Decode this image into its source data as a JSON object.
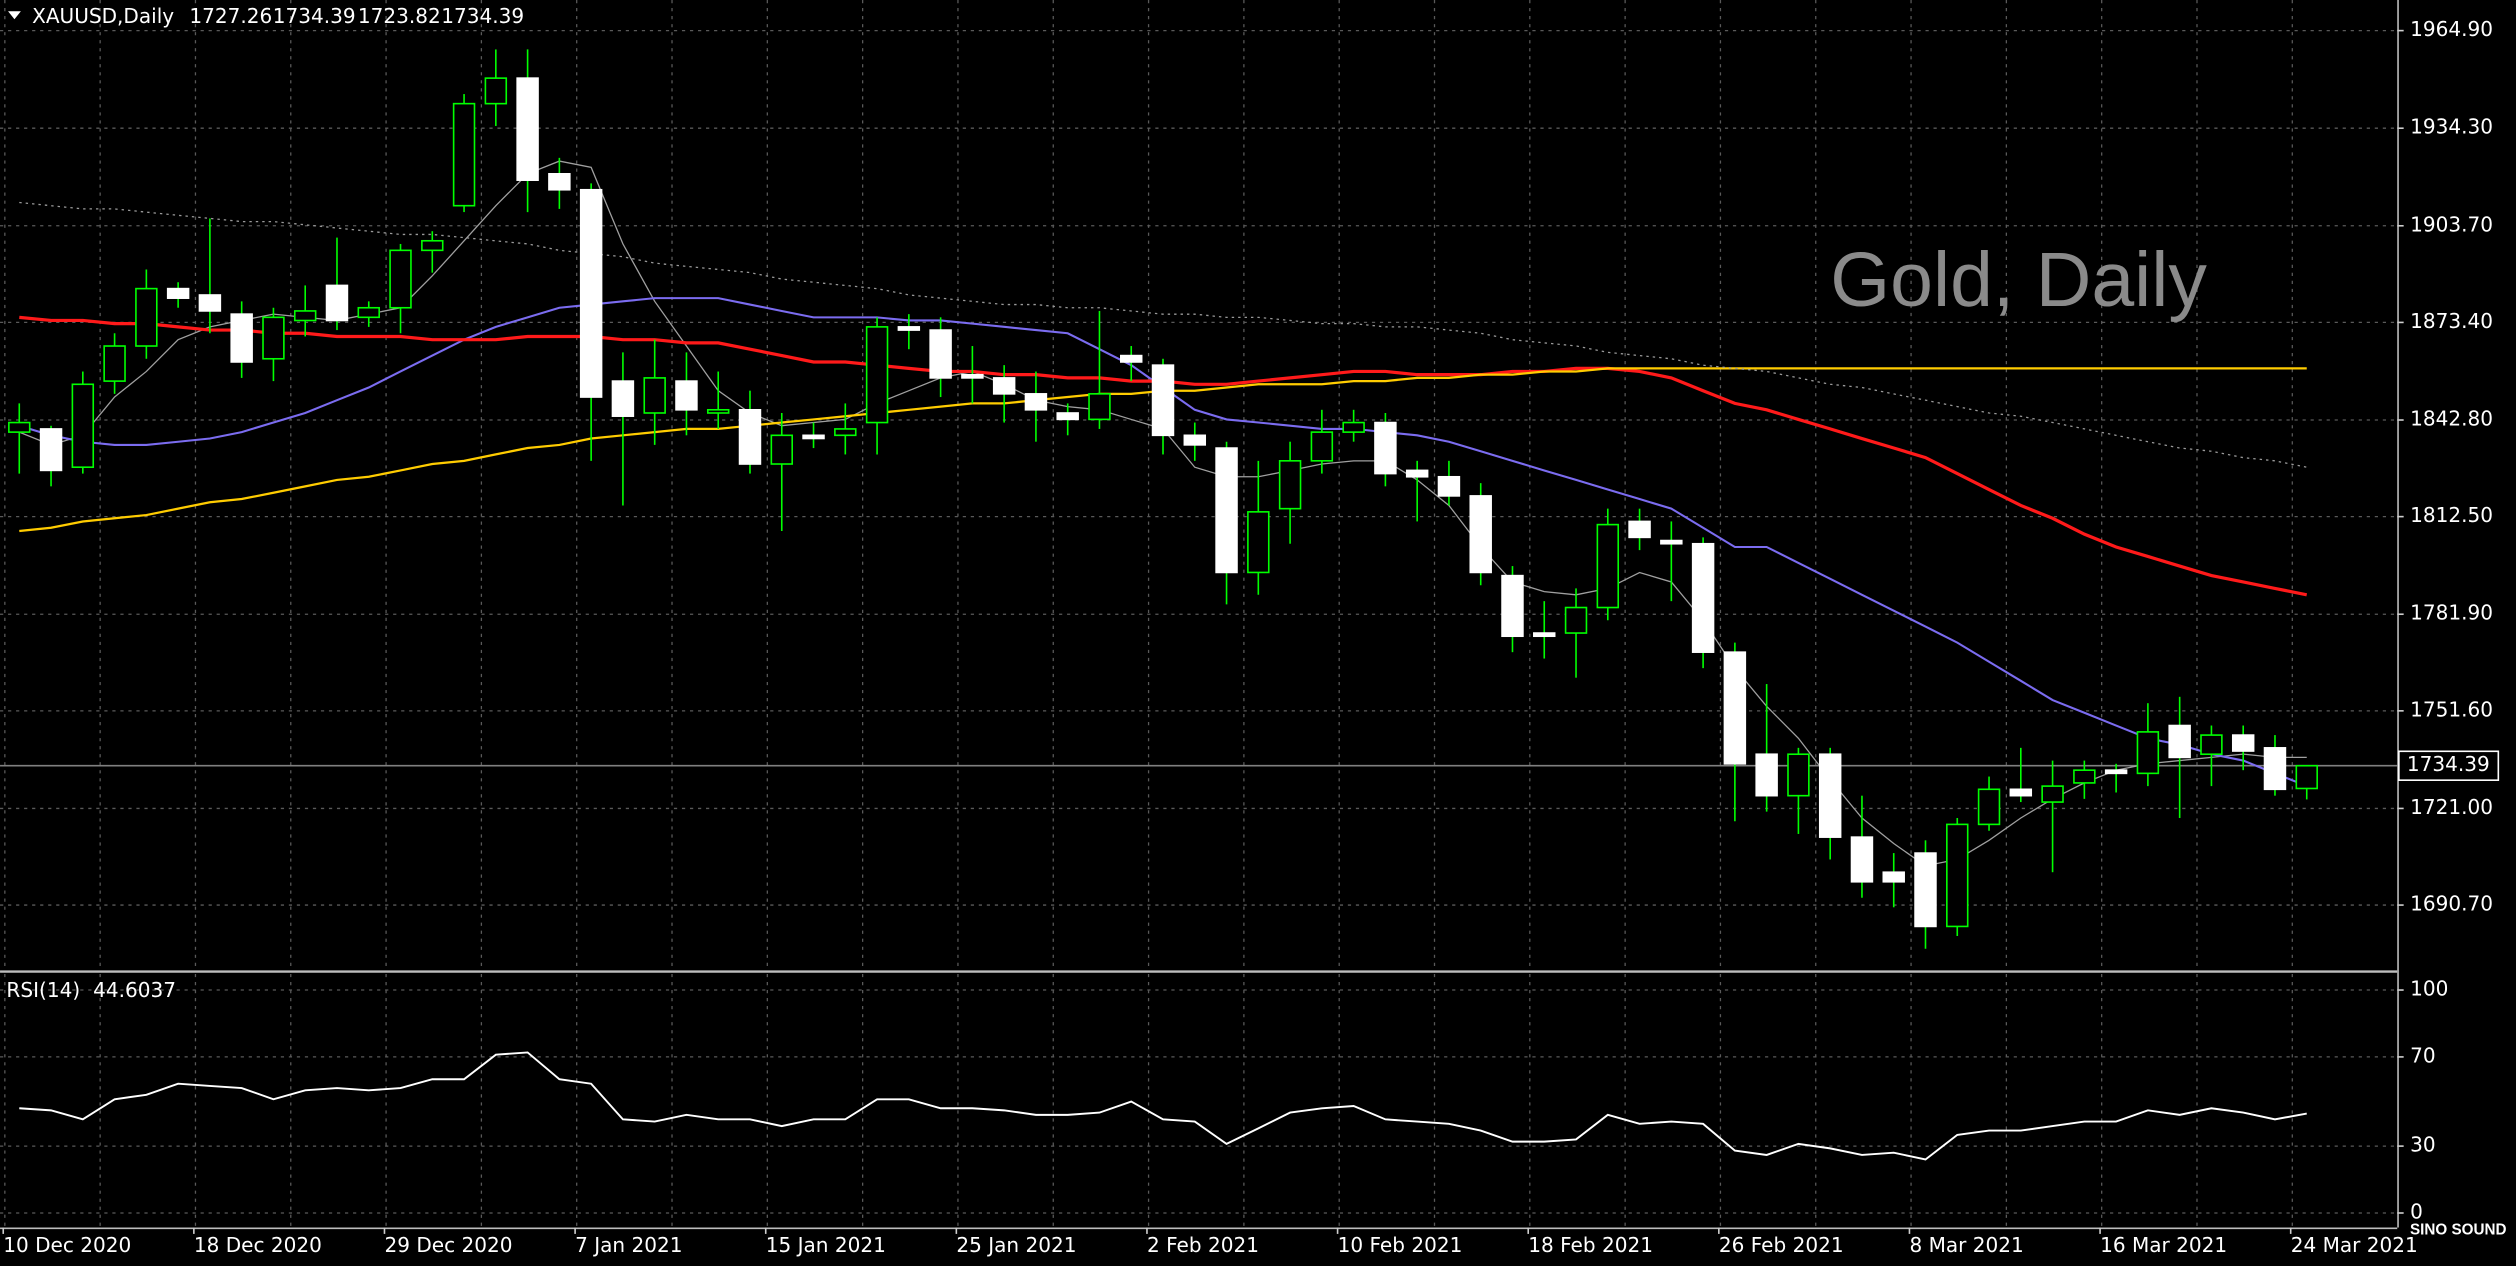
{
  "chart_data": {
    "type": "candlestick",
    "symbol": "XAUUSD,Daily",
    "watermark": "Gold, Daily",
    "categories": [
      "10 Dec 2020",
      null,
      null,
      null,
      null,
      null,
      "18 Dec 2020",
      null,
      null,
      null,
      null,
      null,
      "29 Dec 2020",
      null,
      null,
      null,
      null,
      null,
      "7 Jan 2021",
      null,
      null,
      null,
      null,
      null,
      "15 Jan 2021",
      null,
      null,
      null,
      null,
      null,
      "25 Jan 2021",
      null,
      null,
      null,
      null,
      null,
      "2 Feb 2021",
      null,
      null,
      null,
      null,
      null,
      "10 Feb 2021",
      null,
      null,
      null,
      null,
      null,
      "18 Feb 2021",
      null,
      null,
      null,
      null,
      null,
      "26 Feb 2021",
      null,
      null,
      null,
      null,
      null,
      "8 Mar 2021",
      null,
      null,
      null,
      null,
      null,
      "16 Mar 2021",
      null,
      null,
      null,
      null,
      null,
      "24 Mar 2021"
    ],
    "open": [
      1839,
      1840,
      1828,
      1855,
      1866,
      1884,
      1882,
      1876,
      1862,
      1874,
      1885,
      1875,
      1878,
      1896,
      1910,
      1942,
      1950,
      1920,
      1915,
      1855,
      1845,
      1855,
      1845,
      1846,
      1829,
      1838,
      1838,
      1842,
      1872,
      1871,
      1857,
      1856,
      1851,
      1845,
      1843,
      1863,
      1860,
      1838,
      1834,
      1795,
      1815,
      1830,
      1839,
      1842,
      1827,
      1825,
      1819,
      1794,
      1776,
      1776,
      1784,
      1811,
      1805,
      1804,
      1770,
      1738,
      1725,
      1738,
      1712,
      1701,
      1707,
      1684,
      1716,
      1727,
      1723,
      1729,
      1733,
      1732,
      1747,
      1738,
      1744,
      1740,
      1727.26
    ],
    "high": [
      1848,
      1841,
      1858,
      1870,
      1890,
      1886,
      1906,
      1880,
      1878,
      1885,
      1900,
      1880,
      1898,
      1902,
      1945,
      1959,
      1959,
      1925,
      1917,
      1864,
      1868,
      1864,
      1858,
      1852,
      1845,
      1842,
      1848,
      1875,
      1876,
      1875,
      1866,
      1860,
      1858,
      1848,
      1877,
      1866,
      1862,
      1842,
      1836,
      1830,
      1836,
      1846,
      1846,
      1845,
      1830,
      1830,
      1823,
      1797,
      1786,
      1790,
      1815,
      1815,
      1811,
      1806,
      1773,
      1760,
      1740,
      1740,
      1725,
      1707,
      1711,
      1718,
      1731,
      1740,
      1736,
      1736,
      1735,
      1754,
      1756,
      1747,
      1747,
      1744,
      1734.39
    ],
    "low": [
      1826,
      1822,
      1826,
      1851,
      1862,
      1878,
      1870,
      1856,
      1855,
      1869,
      1871,
      1872,
      1870,
      1889,
      1908,
      1935,
      1908,
      1909,
      1830,
      1816,
      1835,
      1838,
      1840,
      1826,
      1808,
      1834,
      1832,
      1832,
      1865,
      1850,
      1848,
      1842,
      1836,
      1838,
      1840,
      1855,
      1832,
      1830,
      1785,
      1788,
      1804,
      1826,
      1836,
      1822,
      1811,
      1816,
      1791,
      1770,
      1768,
      1762,
      1780,
      1802,
      1786,
      1765,
      1717,
      1720,
      1713,
      1705,
      1693,
      1690,
      1677,
      1681,
      1714,
      1723,
      1701,
      1724,
      1726,
      1728,
      1718,
      1728,
      1733,
      1725,
      1723.82
    ],
    "close": [
      1842,
      1827,
      1854,
      1866,
      1884,
      1881,
      1877,
      1861,
      1875,
      1877,
      1874,
      1878,
      1896,
      1899,
      1942,
      1950,
      1918,
      1915,
      1850,
      1844,
      1856,
      1846,
      1846,
      1829,
      1838,
      1837,
      1840,
      1872,
      1871,
      1856,
      1856,
      1851,
      1846,
      1843,
      1851,
      1861,
      1838,
      1835,
      1795,
      1814,
      1830,
      1839,
      1842,
      1826,
      1825,
      1819,
      1795,
      1775,
      1775,
      1784,
      1810,
      1806,
      1804,
      1770,
      1735,
      1725,
      1738,
      1712,
      1698,
      1698,
      1684,
      1716,
      1727,
      1725,
      1728,
      1733,
      1732,
      1745,
      1737,
      1744,
      1739,
      1727,
      1734.39
    ],
    "up_color": "#00ff00",
    "down_color": "#ffffff",
    "ylim": [
      1670.1,
      1974.5
    ],
    "yticks": [
      {
        "value": 1964.9,
        "label": "1964.90"
      },
      {
        "value": 1934.3,
        "label": "1934.30"
      },
      {
        "value": 1903.7,
        "label": "1903.70"
      },
      {
        "value": 1873.4,
        "label": "1873.40"
      },
      {
        "value": 1842.8,
        "label": "1842.80"
      },
      {
        "value": 1812.5,
        "label": "1812.50"
      },
      {
        "value": 1781.9,
        "label": "1781.90"
      },
      {
        "value": 1751.6,
        "label": "1751.60"
      },
      {
        "value": 1721.0,
        "label": "1721.00"
      },
      {
        "value": 1690.7,
        "label": "1690.70"
      }
    ],
    "grid": true,
    "overlays": [
      {
        "color": "#a0a0a0",
        "width": 0.8,
        "style": "solid",
        "values": [
          1839,
          1835,
          1838,
          1850,
          1858,
          1868,
          1872,
          1874,
          1876,
          1875,
          1874,
          1876,
          1878,
          1888,
          1899,
          1910,
          1920,
          1924,
          1922,
          1898,
          1880,
          1866,
          1852,
          1845,
          1841,
          1842,
          1843,
          1848,
          1852,
          1856,
          1858,
          1854,
          1849,
          1847,
          1846,
          1843,
          1840,
          1828,
          1825,
          1825,
          1827,
          1829,
          1830,
          1830,
          1824,
          1816,
          1803,
          1792,
          1789,
          1788,
          1790,
          1795,
          1792,
          1780,
          1765,
          1753,
          1743,
          1730,
          1718,
          1710,
          1703,
          1705,
          1711,
          1718,
          1724,
          1729,
          1733,
          1735,
          1736,
          1737,
          1738,
          1737,
          1737
        ]
      },
      {
        "color": "#7b6cf0",
        "width": 1.3,
        "style": "solid",
        "values": [
          1841,
          1838,
          1836,
          1835,
          1835,
          1836,
          1837,
          1839,
          1842,
          1845,
          1849,
          1853,
          1858,
          1863,
          1868,
          1872,
          1875,
          1878,
          1879,
          1880,
          1881,
          1881,
          1881,
          1879,
          1877,
          1875,
          1875,
          1875,
          1874,
          1874,
          1873,
          1872,
          1871,
          1870,
          1865,
          1860,
          1853,
          1846,
          1843,
          1842,
          1841,
          1840,
          1840,
          1839,
          1838,
          1836,
          1833,
          1830,
          1827,
          1824,
          1821,
          1818,
          1815,
          1809,
          1803,
          1803,
          1798,
          1793,
          1788,
          1783,
          1778,
          1773,
          1767,
          1761,
          1755,
          1751,
          1747,
          1743,
          1741,
          1738,
          1736,
          1732,
          1728
        ]
      },
      {
        "color": "#ff1a1a",
        "width": 2,
        "style": "solid",
        "values": [
          1875,
          1874,
          1874,
          1873,
          1873,
          1872,
          1871,
          1871,
          1870,
          1870,
          1869,
          1869,
          1869,
          1868,
          1868,
          1868,
          1869,
          1869,
          1869,
          1868,
          1868,
          1867,
          1867,
          1865,
          1863,
          1861,
          1861,
          1860,
          1859,
          1858,
          1858,
          1857,
          1857,
          1856,
          1856,
          1855,
          1855,
          1854,
          1854,
          1855,
          1856,
          1857,
          1858,
          1858,
          1857,
          1857,
          1857,
          1858,
          1858,
          1859,
          1859,
          1858,
          1856,
          1852,
          1848,
          1846,
          1843,
          1840,
          1837,
          1834,
          1831,
          1826,
          1821,
          1816,
          1812,
          1807,
          1803,
          1800,
          1797,
          1794,
          1792,
          1790,
          1788
        ]
      },
      {
        "color": "#ffcc00",
        "width": 1.4,
        "style": "solid",
        "values": [
          1808,
          1809,
          1811,
          1812,
          1813,
          1815,
          1817,
          1818,
          1820,
          1822,
          1824,
          1825,
          1827,
          1829,
          1830,
          1832,
          1834,
          1835,
          1837,
          1838,
          1839,
          1840,
          1840,
          1841,
          1842,
          1843,
          1844,
          1845,
          1846,
          1847,
          1848,
          1848,
          1849,
          1850,
          1851,
          1851,
          1852,
          1852,
          1853,
          1854,
          1854,
          1854,
          1855,
          1855,
          1856,
          1856,
          1857,
          1857,
          1858,
          1858,
          1859,
          1859,
          1859,
          1859,
          1859,
          1859,
          1859,
          1859,
          1859,
          1859,
          1859,
          1859,
          1859,
          1859,
          1859,
          1859,
          1859,
          1859,
          1859,
          1859,
          1859,
          1859,
          1859
        ]
      },
      {
        "color": "#9a9a9a",
        "width": 0.8,
        "style": "dotted",
        "values": [
          1911,
          1910,
          1909,
          1909,
          1908,
          1907,
          1906,
          1905,
          1905,
          1904,
          1903,
          1902,
          1901,
          1901,
          1900,
          1899,
          1898,
          1896,
          1895,
          1894,
          1892,
          1891,
          1890,
          1889,
          1887,
          1886,
          1885,
          1884,
          1882,
          1881,
          1880,
          1879,
          1879,
          1878,
          1878,
          1877,
          1876,
          1876,
          1875,
          1875,
          1874,
          1873,
          1873,
          1872,
          1872,
          1871,
          1870,
          1868,
          1867,
          1866,
          1864,
          1863,
          1862,
          1860,
          1859,
          1858,
          1856,
          1854,
          1853,
          1851,
          1849,
          1847,
          1845,
          1844,
          1842,
          1840,
          1838,
          1836,
          1834,
          1833,
          1831,
          1830,
          1828
        ]
      }
    ],
    "rsi": {
      "label": "RSI(14)",
      "color": "#ffffff",
      "values": [
        47,
        46,
        42,
        51,
        53,
        58,
        57,
        56,
        51,
        55,
        56,
        55,
        56,
        60,
        60,
        71,
        72,
        60,
        58,
        42,
        41,
        44,
        42,
        42,
        39,
        42,
        42,
        51,
        51,
        47,
        47,
        46,
        44,
        44,
        45,
        50,
        42,
        41,
        31,
        38,
        45,
        47,
        48,
        42,
        41,
        40,
        37,
        32,
        32,
        33,
        44,
        40,
        41,
        40,
        28,
        26,
        31,
        29,
        26,
        27,
        24,
        35,
        37,
        37,
        39,
        41,
        41,
        46,
        44,
        47,
        45,
        42,
        44.6037
      ],
      "ylim": [
        -6.5,
        107.2
      ],
      "yticks": [
        0,
        30,
        70,
        100
      ]
    }
  },
  "logo": "SINO SOUND"
}
